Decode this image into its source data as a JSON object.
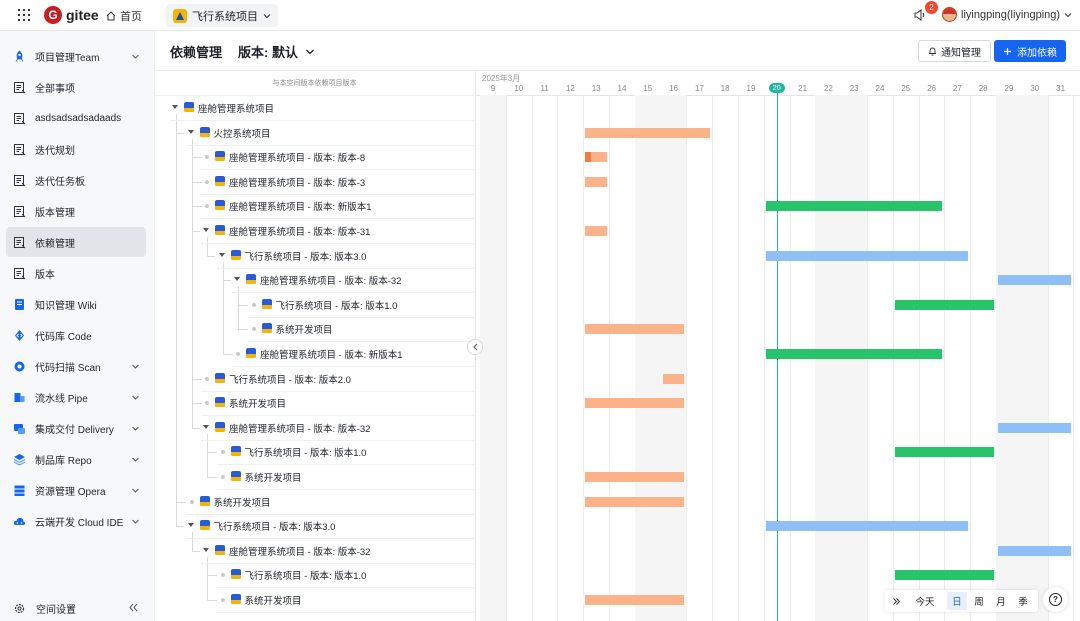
{
  "topbar": {
    "brand": "gitee",
    "home": "首页",
    "project": "飞行系统项目",
    "notification_count": "2",
    "user": "liyingping(liyingping)"
  },
  "sidebar": {
    "items": [
      {
        "label": "项目管理Team",
        "icon": "rocket-icon",
        "arrow": true
      },
      {
        "label": "全部事项",
        "icon": "doc-icon"
      },
      {
        "label": "asdsadsadsadaads",
        "icon": "doc-icon"
      },
      {
        "label": "迭代规划",
        "icon": "doc-icon"
      },
      {
        "label": "迭代任务板",
        "icon": "doc-icon"
      },
      {
        "label": "版本管理",
        "icon": "doc-icon"
      },
      {
        "label": "依赖管理",
        "icon": "doc-icon",
        "active": true
      },
      {
        "label": "版本",
        "icon": "doc-icon"
      },
      {
        "label": "知识管理 Wiki",
        "icon": "book-icon"
      },
      {
        "label": "代码库 Code",
        "icon": "code-icon"
      },
      {
        "label": "代码扫描 Scan",
        "icon": "scan-icon",
        "arrow": true
      },
      {
        "label": "流水线 Pipe",
        "icon": "pipe-icon",
        "arrow": true
      },
      {
        "label": "集成交付 Delivery",
        "icon": "delivery-icon",
        "arrow": true
      },
      {
        "label": "制品库 Repo",
        "icon": "repo-icon",
        "arrow": true
      },
      {
        "label": "资源管理 Opera",
        "icon": "opera-icon",
        "arrow": true
      },
      {
        "label": "云端开发 Cloud IDE",
        "icon": "cloud-icon",
        "arrow": true
      }
    ],
    "footer": "空间设置"
  },
  "header": {
    "title": "依赖管理",
    "version": "版本: 默认",
    "notify_button": "通知管理",
    "add_button": "添加依赖"
  },
  "tree": {
    "column_header": "与本空间版本依赖项目版本",
    "rows": [
      {
        "label": "座舱管理系统项目",
        "depth": 0,
        "caret": true
      },
      {
        "label": "火控系统项目",
        "depth": 1,
        "caret": true
      },
      {
        "label": "座舱管理系统项目 - 版本: 版本-8",
        "depth": 2
      },
      {
        "label": "座舱管理系统项目 - 版本: 版本-3",
        "depth": 2
      },
      {
        "label": "座舱管理系统项目 - 版本: 新版本1",
        "depth": 2
      },
      {
        "label": "座舱管理系统项目 - 版本: 版本-31",
        "depth": 2,
        "caret": true
      },
      {
        "label": "飞行系统项目 - 版本: 版本3.0",
        "depth": 3,
        "caret": true
      },
      {
        "label": "座舱管理系统项目 - 版本: 版本-32",
        "depth": 4,
        "caret": true
      },
      {
        "label": "飞行系统项目 - 版本: 版本1.0",
        "depth": 5
      },
      {
        "label": "系统开发项目",
        "depth": 5
      },
      {
        "label": "座舱管理系统项目 - 版本: 新版本1",
        "depth": 4
      },
      {
        "label": "飞行系统项目 - 版本: 版本2.0",
        "depth": 2
      },
      {
        "label": "系统开发项目",
        "depth": 2
      },
      {
        "label": "座舱管理系统项目 - 版本: 版本-32",
        "depth": 2,
        "caret": true
      },
      {
        "label": "飞行系统项目 - 版本: 版本1.0",
        "depth": 3
      },
      {
        "label": "系统开发项目",
        "depth": 3
      },
      {
        "label": "系统开发项目",
        "depth": 1
      },
      {
        "label": "飞行系统项目 - 版本: 版本3.0",
        "depth": 1,
        "caret": true
      },
      {
        "label": "座舱管理系统项目 - 版本: 版本-32",
        "depth": 2,
        "caret": true
      },
      {
        "label": "飞行系统项目 - 版本: 版本1.0",
        "depth": 3
      },
      {
        "label": "系统开发项目",
        "depth": 3
      }
    ]
  },
  "gantt": {
    "month": "2025年3月",
    "days": [
      "9",
      "10",
      "11",
      "12",
      "13",
      "14",
      "15",
      "16",
      "17",
      "18",
      "19",
      "20",
      "21",
      "22",
      "23",
      "24",
      "25",
      "26",
      "27",
      "28",
      "29",
      "30",
      "31"
    ],
    "weekend_days": [
      "9",
      "15",
      "16",
      "22",
      "23",
      "29",
      "30"
    ],
    "today": "20",
    "bars": [
      {
        "row": 1,
        "start": "13",
        "end": "17",
        "color": "orange"
      },
      {
        "row": 2,
        "start": "13",
        "end": "13",
        "color": "orange",
        "progress": 0.25
      },
      {
        "row": 3,
        "start": "13",
        "end": "13",
        "color": "orange"
      },
      {
        "row": 4,
        "start": "20",
        "end": "26",
        "color": "green"
      },
      {
        "row": 5,
        "start": "13",
        "end": "13",
        "color": "orange"
      },
      {
        "row": 6,
        "start": "20",
        "end": "27",
        "color": "blue"
      },
      {
        "row": 7,
        "start": "29",
        "end": "31",
        "color": "blue"
      },
      {
        "row": 8,
        "start": "25",
        "end": "28",
        "color": "green"
      },
      {
        "row": 9,
        "start": "13",
        "end": "16",
        "color": "orange"
      },
      {
        "row": 10,
        "start": "20",
        "end": "26",
        "color": "green"
      },
      {
        "row": 11,
        "start": "16",
        "end": "16",
        "color": "orange"
      },
      {
        "row": 12,
        "start": "13",
        "end": "16",
        "color": "orange"
      },
      {
        "row": 13,
        "start": "29",
        "end": "31",
        "color": "blue"
      },
      {
        "row": 14,
        "start": "25",
        "end": "28",
        "color": "green"
      },
      {
        "row": 15,
        "start": "13",
        "end": "16",
        "color": "orange"
      },
      {
        "row": 16,
        "start": "13",
        "end": "16",
        "color": "orange"
      },
      {
        "row": 17,
        "start": "20",
        "end": "27",
        "color": "blue"
      },
      {
        "row": 18,
        "start": "29",
        "end": "31",
        "color": "blue"
      },
      {
        "row": 19,
        "start": "25",
        "end": "28",
        "color": "green"
      },
      {
        "row": 20,
        "start": "13",
        "end": "16",
        "color": "orange"
      }
    ],
    "colors": {
      "orange": "#fdb389",
      "green": "#27c46c",
      "blue": "#8fbff7",
      "today": "#1fb5a0"
    }
  },
  "toolbar": {
    "today": "今天",
    "scales": [
      "日",
      "周",
      "月",
      "季"
    ],
    "active_scale": "日"
  }
}
